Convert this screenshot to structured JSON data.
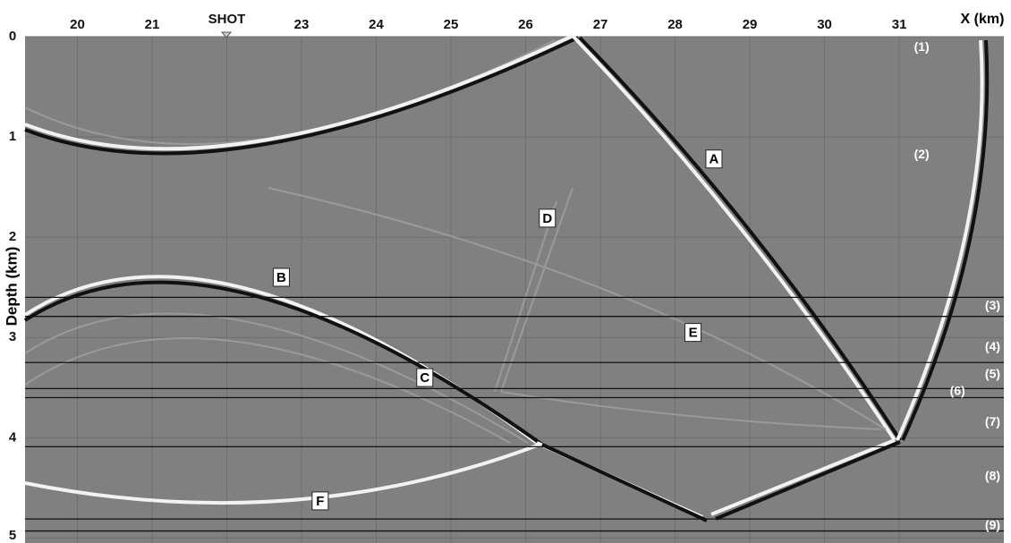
{
  "chart_data": {
    "type": "seismic-snapshot",
    "x_label": "X (km)",
    "y_label": "Depth (km)",
    "xlim": [
      19.3,
      32.4
    ],
    "ylim": [
      0,
      5.05
    ],
    "xticks": [
      20,
      21,
      {
        "value": 22,
        "label": "SHOT"
      },
      23,
      24,
      25,
      26,
      27,
      28,
      29,
      30,
      31
    ],
    "yticks": [
      0,
      1,
      2,
      3,
      4,
      5
    ],
    "grid": true,
    "interfaces": [
      2.6,
      2.79,
      3.25,
      3.51,
      3.6,
      4.09,
      4.81,
      4.93
    ],
    "wavefront_labels": [
      {
        "label": "A",
        "x": 28.52,
        "y": 1.22
      },
      {
        "label": "B",
        "x": 22.73,
        "y": 2.4
      },
      {
        "label": "C",
        "x": 24.65,
        "y": 3.4
      },
      {
        "label": "D",
        "x": 26.29,
        "y": 1.81
      },
      {
        "label": "E",
        "x": 28.24,
        "y": 2.95
      },
      {
        "label": "F",
        "x": 23.25,
        "y": 4.63
      }
    ],
    "layer_labels": [
      {
        "label": "(1)",
        "x": 31.3,
        "y": 0.11
      },
      {
        "label": "(2)",
        "x": 31.3,
        "y": 1.18
      },
      {
        "label": "(3)",
        "x": 32.25,
        "y": 2.69
      },
      {
        "label": "(4)",
        "x": 32.25,
        "y": 3.1
      },
      {
        "label": "(5)",
        "x": 32.25,
        "y": 3.37
      },
      {
        "label": "(6)",
        "x": 31.78,
        "y": 3.54
      },
      {
        "label": "(7)",
        "x": 32.25,
        "y": 3.85
      },
      {
        "label": "(8)",
        "x": 32.25,
        "y": 4.39
      },
      {
        "label": "(9)",
        "x": 32.25,
        "y": 4.88
      }
    ]
  }
}
